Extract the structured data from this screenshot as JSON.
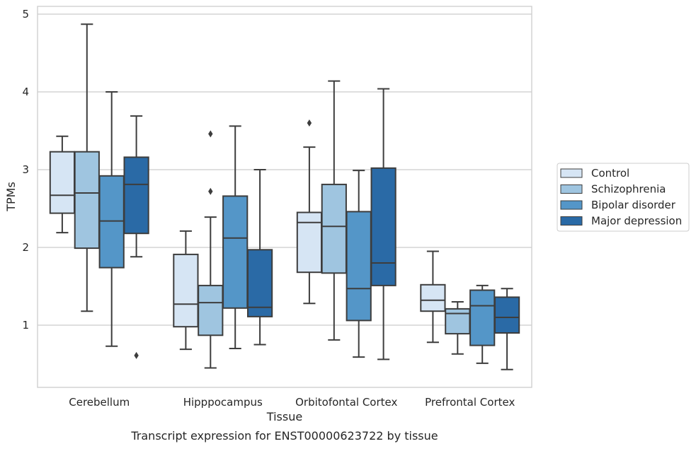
{
  "caption": "Transcript expression for ENST00000623722 by tissue",
  "chart_data": {
    "type": "box",
    "title": "",
    "xlabel": "Tissue",
    "ylabel": "TPMs",
    "ylim": [
      0.2,
      5.1
    ],
    "yticks": [
      1,
      2,
      3,
      4,
      5
    ],
    "grid": true,
    "legend_position": "right",
    "categories": [
      "Cerebellum",
      "Hipppocampus",
      "Orbitofontal Cortex",
      "Prefrontal Cortex"
    ],
    "series": [
      {
        "name": "Control",
        "color": "#d6e5f4",
        "boxes": [
          {
            "whisker_low": 2.19,
            "q1": 2.44,
            "median": 2.67,
            "q3": 3.23,
            "whisker_high": 3.43,
            "outliers": []
          },
          {
            "whisker_low": 0.69,
            "q1": 0.98,
            "median": 1.27,
            "q3": 1.91,
            "whisker_high": 2.21,
            "outliers": []
          },
          {
            "whisker_low": 1.28,
            "q1": 1.68,
            "median": 2.32,
            "q3": 2.45,
            "whisker_high": 3.29,
            "outliers": [
              3.6
            ]
          },
          {
            "whisker_low": 0.78,
            "q1": 1.18,
            "median": 1.32,
            "q3": 1.52,
            "whisker_high": 1.95,
            "outliers": []
          }
        ]
      },
      {
        "name": "Schizophrenia",
        "color": "#9fc5e0",
        "boxes": [
          {
            "whisker_low": 1.18,
            "q1": 1.99,
            "median": 2.7,
            "q3": 3.23,
            "whisker_high": 4.87,
            "outliers": []
          },
          {
            "whisker_low": 0.45,
            "q1": 0.87,
            "median": 1.29,
            "q3": 1.51,
            "whisker_high": 2.39,
            "outliers": [
              2.72,
              3.46
            ]
          },
          {
            "whisker_low": 0.81,
            "q1": 1.67,
            "median": 2.27,
            "q3": 2.81,
            "whisker_high": 4.14,
            "outliers": []
          },
          {
            "whisker_low": 0.63,
            "q1": 0.89,
            "median": 1.15,
            "q3": 1.21,
            "whisker_high": 1.3,
            "outliers": []
          }
        ]
      },
      {
        "name": "Bipolar disorder",
        "color": "#5496c8",
        "boxes": [
          {
            "whisker_low": 0.73,
            "q1": 1.74,
            "median": 2.34,
            "q3": 2.92,
            "whisker_high": 4.0,
            "outliers": []
          },
          {
            "whisker_low": 0.7,
            "q1": 1.22,
            "median": 2.12,
            "q3": 2.66,
            "whisker_high": 3.56,
            "outliers": []
          },
          {
            "whisker_low": 0.59,
            "q1": 1.06,
            "median": 1.47,
            "q3": 2.46,
            "whisker_high": 2.99,
            "outliers": []
          },
          {
            "whisker_low": 0.51,
            "q1": 0.74,
            "median": 1.25,
            "q3": 1.45,
            "whisker_high": 1.51,
            "outliers": []
          }
        ]
      },
      {
        "name": "Major depression",
        "color": "#2a6aa6",
        "boxes": [
          {
            "whisker_low": 1.88,
            "q1": 2.18,
            "median": 2.81,
            "q3": 3.16,
            "whisker_high": 3.69,
            "outliers": [
              0.61
            ]
          },
          {
            "whisker_low": 0.75,
            "q1": 1.11,
            "median": 1.23,
            "q3": 1.97,
            "whisker_high": 3.0,
            "outliers": []
          },
          {
            "whisker_low": 0.56,
            "q1": 1.51,
            "median": 1.8,
            "q3": 3.02,
            "whisker_high": 4.04,
            "outliers": []
          },
          {
            "whisker_low": 0.43,
            "q1": 0.9,
            "median": 1.1,
            "q3": 1.36,
            "whisker_high": 1.47,
            "outliers": []
          }
        ]
      }
    ]
  }
}
